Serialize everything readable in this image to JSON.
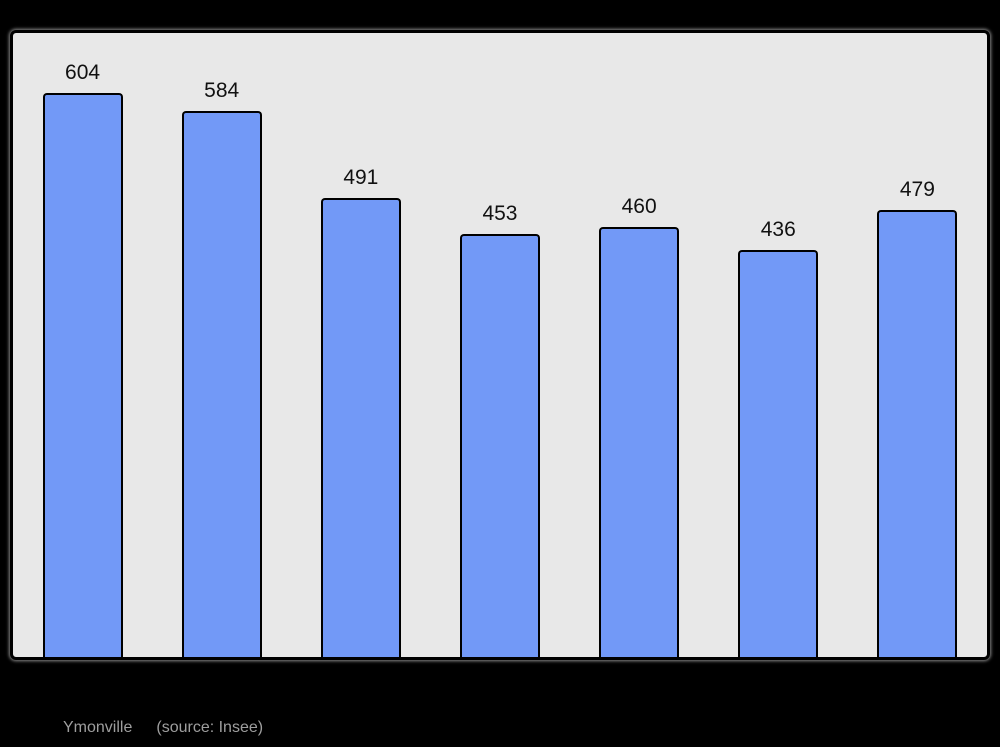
{
  "chart_data": {
    "type": "bar",
    "values": [
      604,
      584,
      491,
      453,
      460,
      436,
      479
    ],
    "bar_labels": [
      "604",
      "584",
      "491",
      "453",
      "460",
      "436",
      "479"
    ],
    "title": "",
    "xlabel": "",
    "ylabel": "",
    "ylim": [
      0,
      668
    ],
    "grid": false,
    "legend": "none",
    "bar_color": "#7299f7",
    "bar_border_color": "#000000",
    "plot_background": "#e8e8e8",
    "page_background": "#000000",
    "value_label_color": "#111111"
  },
  "caption": {
    "location": "Ymonville",
    "source": "(source: Insee)",
    "color": "#9e9e9e"
  }
}
